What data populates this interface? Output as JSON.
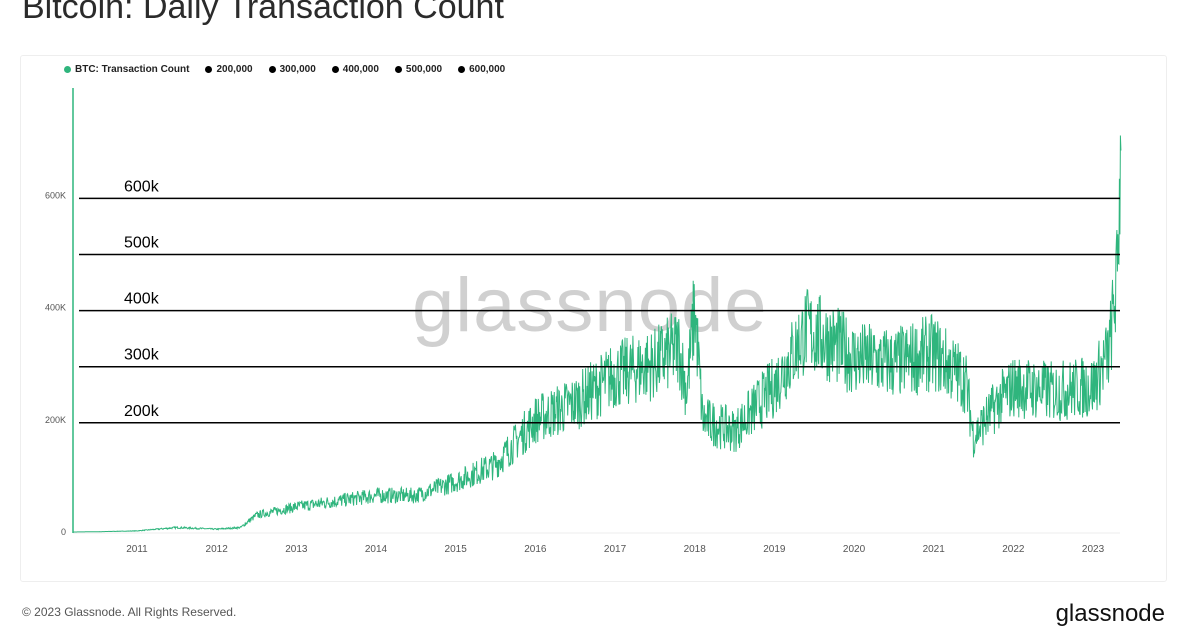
{
  "title": "Bitcoin: Daily Transaction Count",
  "watermark": "glassnode",
  "footer": "© 2023 Glassnode. All Rights Reserved.",
  "logo": "glassnode",
  "legend": [
    {
      "label": "BTC: Transaction Count",
      "color": "#2fb57d"
    },
    {
      "label": "200,000",
      "color": "#000000"
    },
    {
      "label": "300,000",
      "color": "#000000"
    },
    {
      "label": "400,000",
      "color": "#000000"
    },
    {
      "label": "500,000",
      "color": "#000000"
    },
    {
      "label": "600,000",
      "color": "#000000"
    }
  ],
  "chart_data": {
    "type": "line",
    "title": "Bitcoin: Daily Transaction Count",
    "xlim": [
      2010.2,
      2023.35
    ],
    "ylim": [
      0,
      700000
    ],
    "x_ticks": [
      "2011",
      "2012",
      "2013",
      "2014",
      "2015",
      "2016",
      "2017",
      "2018",
      "2019",
      "2020",
      "2021",
      "2022",
      "2023"
    ],
    "y_ticks": [
      {
        "value": 0,
        "label": "0"
      },
      {
        "value": 200000,
        "label": "200K"
      },
      {
        "value": 400000,
        "label": "400K"
      },
      {
        "value": 600000,
        "label": "600K"
      }
    ],
    "series": [
      {
        "name": "BTC: Transaction Count",
        "color": "#2fb57d",
        "x": [
          2010.2,
          2010.5,
          2011,
          2011.5,
          2012,
          2012.3,
          2012.5,
          2013,
          2013.5,
          2014,
          2014.5,
          2015,
          2015.5,
          2016,
          2016.5,
          2017,
          2017.5,
          2017.8,
          2017.9,
          2018,
          2018.1,
          2018.5,
          2019,
          2019.4,
          2019.7,
          2020,
          2020.5,
          2021,
          2021.4,
          2021.5,
          2021.8,
          2022,
          2022.5,
          2023,
          2023.2,
          2023.3,
          2023.35
        ],
        "y": [
          0,
          500,
          2000,
          8000,
          5000,
          8000,
          30000,
          45000,
          55000,
          65000,
          65000,
          90000,
          120000,
          200000,
          230000,
          280000,
          300000,
          330000,
          250000,
          400000,
          200000,
          180000,
          260000,
          360000,
          340000,
          310000,
          300000,
          320000,
          270000,
          170000,
          230000,
          260000,
          250000,
          260000,
          320000,
          450000,
          680000
        ]
      }
    ],
    "reference_lines": [
      {
        "value": 200000,
        "label": "200k"
      },
      {
        "value": 300000,
        "label": "300k"
      },
      {
        "value": 400000,
        "label": "400k"
      },
      {
        "value": 500000,
        "label": "500k"
      },
      {
        "value": 600000,
        "label": "600k"
      }
    ]
  }
}
